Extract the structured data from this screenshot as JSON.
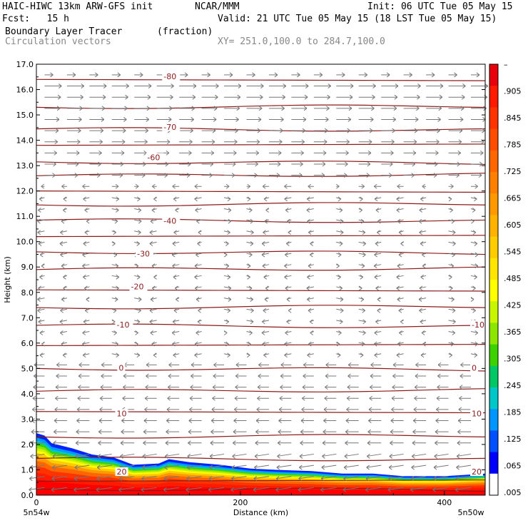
{
  "header": {
    "model": "HAIC-HIWC 13km ARW-GFS init",
    "org": "NCAR/MMM",
    "init": "Init: 06 UTC Tue 05 May 15",
    "fcst": "Fcst:   15 h",
    "valid": "Valid: 21 UTC Tue 05 May 15 (18 LST Tue 05 May 15)",
    "field": "Boundary Layer Tracer",
    "units": "(fraction)",
    "vectors": "Circulation vectors",
    "xsect": "XY= 251.0,100.0 to 284.7,100.0"
  },
  "chart_data": {
    "type": "cross-section",
    "xlabel": "Distance (km)",
    "ylabel": "Height (km)",
    "xlim": [
      0,
      440
    ],
    "ylim": [
      0,
      17
    ],
    "x_ticks": [
      0,
      200,
      400
    ],
    "y_ticks": [
      "0.0",
      "1.0",
      "2.0",
      "3.0",
      "4.0",
      "5.0",
      "6.0",
      "7.0",
      "8.0",
      "9.0",
      "10.0",
      "11.0",
      "12.0",
      "13.0",
      "14.0",
      "15.0",
      "16.0",
      "17.0"
    ],
    "x_end_labels": {
      "left": "5n54w",
      "right": "5n50w"
    },
    "colorbar": {
      "labels": [
        "–",
        ".905",
        ".845",
        ".785",
        ".725",
        ".665",
        ".605",
        ".545",
        ".485",
        ".425",
        ".365",
        ".305",
        ".245",
        ".185",
        ".125",
        ".065",
        ".005"
      ],
      "colors": [
        "#e8000b",
        "#ff1a00",
        "#ff3300",
        "#ff4c00",
        "#ff6600",
        "#ff8000",
        "#ff9900",
        "#ffb200",
        "#ffcc00",
        "#ffe500",
        "#ffff00",
        "#c8f500",
        "#8ce600",
        "#3cd200",
        "#00c864",
        "#00c8c8",
        "#0096ff",
        "#0050ff",
        "#0000ff",
        "#ffffff"
      ]
    },
    "isotherms": {
      "color": "#8b1a1a",
      "labels": [
        {
          "value": "-80",
          "x": 124,
          "y": 16.5
        },
        {
          "value": "-70",
          "x": 124,
          "y": 14.5
        },
        {
          "value": "-60",
          "x": 108,
          "y": 13.3
        },
        {
          "value": "-40",
          "x": 124,
          "y": 10.8
        },
        {
          "value": "-30",
          "x": 98,
          "y": 9.5
        },
        {
          "value": "-20",
          "x": 92,
          "y": 8.2
        },
        {
          "value": "-10",
          "x": 78,
          "y": 6.7
        },
        {
          "value": "-10",
          "x": 440,
          "y": 6.7
        },
        {
          "value": "0",
          "x": 80,
          "y": 5.0
        },
        {
          "value": "0",
          "x": 440,
          "y": 5.0
        },
        {
          "value": "10",
          "x": 78,
          "y": 3.2
        },
        {
          "value": "10",
          "x": 440,
          "y": 3.2
        },
        {
          "value": "20",
          "x": 78,
          "y": 0.9
        },
        {
          "value": "20",
          "x": 440,
          "y": 0.9
        }
      ],
      "line_levels": [
        0.25,
        0.55,
        1.45,
        2.3,
        3.3,
        4.1,
        5.0,
        5.9,
        6.7,
        7.4,
        8.1,
        8.9,
        9.6,
        10.2,
        10.85,
        11.45,
        12.0,
        12.6,
        13.15,
        13.8,
        14.45,
        15.3,
        16.4
      ]
    },
    "tracer_top": [
      [
        0,
        2.45
      ],
      [
        8,
        2.35
      ],
      [
        15,
        2.05
      ],
      [
        25,
        1.95
      ],
      [
        35,
        1.85
      ],
      [
        55,
        1.6
      ],
      [
        75,
        1.5
      ],
      [
        95,
        1.2
      ],
      [
        120,
        1.25
      ],
      [
        130,
        1.42
      ],
      [
        150,
        1.3
      ],
      [
        180,
        1.2
      ],
      [
        210,
        1.05
      ],
      [
        235,
        1.0
      ],
      [
        270,
        0.95
      ],
      [
        300,
        0.85
      ],
      [
        330,
        0.85
      ],
      [
        360,
        0.75
      ],
      [
        400,
        0.75
      ],
      [
        440,
        0.85
      ]
    ]
  }
}
